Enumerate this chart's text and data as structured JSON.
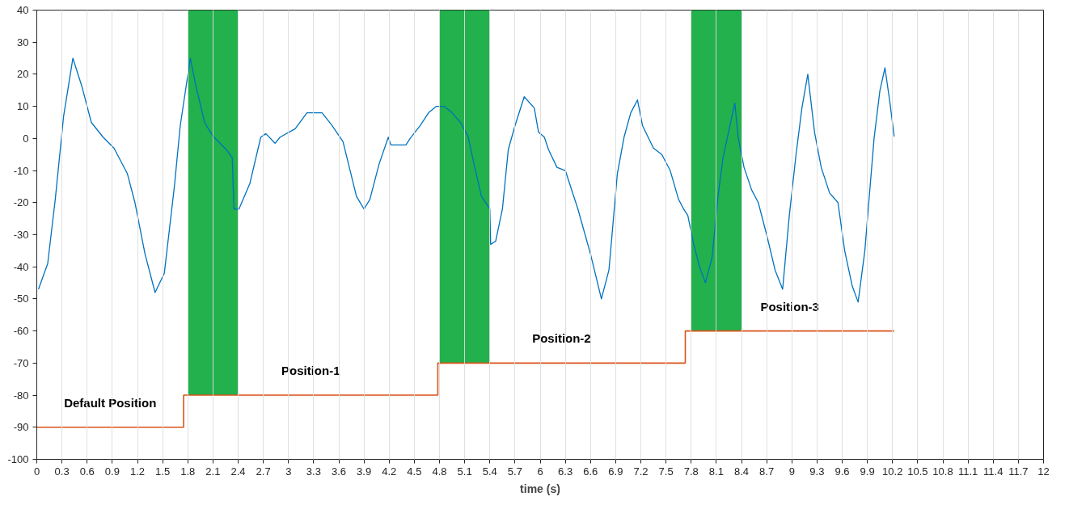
{
  "chart_data": {
    "type": "line",
    "xlabel": "time (s)",
    "xlim": [
      0,
      12
    ],
    "ylim": [
      -100,
      40
    ],
    "xticks": [
      0,
      0.3,
      0.6,
      0.9,
      1.2,
      1.5,
      1.8,
      2.1,
      2.4,
      2.7,
      3,
      3.3,
      3.6,
      3.9,
      4.2,
      4.5,
      4.8,
      5.1,
      5.4,
      5.7,
      6,
      6.3,
      6.6,
      6.9,
      7.2,
      7.5,
      7.8,
      8.1,
      8.4,
      8.7,
      9,
      9.3,
      9.6,
      9.9,
      10.2,
      10.5,
      10.8,
      11.1,
      11.4,
      11.7,
      12
    ],
    "yticks": [
      -100,
      -90,
      -80,
      -70,
      -60,
      -50,
      -40,
      -30,
      -20,
      -10,
      0,
      10,
      20,
      30,
      40
    ],
    "grid": "x",
    "series": [
      {
        "color": "#0072bd",
        "x": [
          0.02,
          0.13,
          0.22,
          0.32,
          0.43,
          0.54,
          0.65,
          0.79,
          0.92,
          1.08,
          1.17,
          1.29,
          1.41,
          1.52,
          1.64,
          1.71,
          1.83,
          1.9,
          2.0,
          2.1,
          2.26,
          2.33,
          2.35,
          2.41,
          2.54,
          2.67,
          2.73,
          2.84,
          2.9,
          3.08,
          3.22,
          3.4,
          3.52,
          3.65,
          3.81,
          3.9,
          3.97,
          4.08,
          4.19,
          4.22,
          4.4,
          4.45,
          4.57,
          4.67,
          4.76,
          4.86,
          4.95,
          5.05,
          5.14,
          5.22,
          5.3,
          5.4,
          5.41,
          5.47,
          5.55,
          5.62,
          5.7,
          5.81,
          5.93,
          5.98,
          6.05,
          6.1,
          6.2,
          6.3,
          6.45,
          6.6,
          6.73,
          6.82,
          6.92,
          7.0,
          7.08,
          7.16,
          7.22,
          7.35,
          7.45,
          7.55,
          7.65,
          7.71,
          7.76,
          7.83,
          7.9,
          7.97,
          8.05,
          8.12,
          8.18,
          8.25,
          8.32,
          8.36,
          8.43,
          8.52,
          8.6,
          8.7,
          8.8,
          8.89,
          8.97,
          9.05,
          9.12,
          9.19,
          9.27,
          9.35,
          9.45,
          9.55,
          9.63,
          9.72,
          9.79,
          9.87,
          9.98,
          10.05,
          10.11,
          10.17,
          10.22
        ],
        "values": [
          -47,
          -39,
          -19,
          7,
          25,
          16,
          5,
          0.4,
          -3,
          -11,
          -20,
          -36,
          -48,
          -42,
          -15,
          4,
          25,
          16,
          5,
          0.7,
          -3.5,
          -6,
          -22,
          -22,
          -14,
          0.4,
          1.5,
          -1.5,
          0.4,
          3,
          8,
          8,
          4,
          -1,
          -18,
          -22,
          -19,
          -8,
          0.4,
          -2,
          -2,
          0,
          4,
          8,
          10,
          10,
          8,
          5,
          0.7,
          -9,
          -18,
          -22,
          -33,
          -32,
          -22,
          -3.5,
          4,
          13,
          9.5,
          2,
          0.4,
          -3.5,
          -9,
          -10,
          -22,
          -36,
          -50,
          -41,
          -11,
          0.4,
          8,
          12,
          4,
          -3,
          -5,
          -10,
          -19,
          -22,
          -24,
          -33,
          -40,
          -45,
          -37,
          -18,
          -6,
          2.5,
          11,
          0.4,
          -9,
          -16,
          -20,
          -30,
          -41,
          -47,
          -24,
          -5,
          9.5,
          20,
          2,
          -9,
          -17,
          -20,
          -35,
          -46,
          -51,
          -35,
          0,
          15,
          22,
          11,
          0.6
        ]
      },
      {
        "type": "step",
        "color": "#d95319",
        "x": [
          0,
          1.75,
          4.78,
          7.73,
          10.22
        ],
        "values": [
          -90,
          -80,
          -70,
          -60,
          -60
        ]
      }
    ],
    "bands": [
      {
        "axis": "x",
        "from": 1.8,
        "to": 2.4,
        "color": "#22b14c"
      },
      {
        "axis": "x",
        "from": 4.8,
        "to": 5.4,
        "color": "#22b14c"
      },
      {
        "axis": "x",
        "from": 7.8,
        "to": 8.4,
        "color": "#22b14c"
      }
    ],
    "annotations": [
      "Default Position",
      "Position-1",
      "Position-2",
      "Position-3"
    ]
  }
}
